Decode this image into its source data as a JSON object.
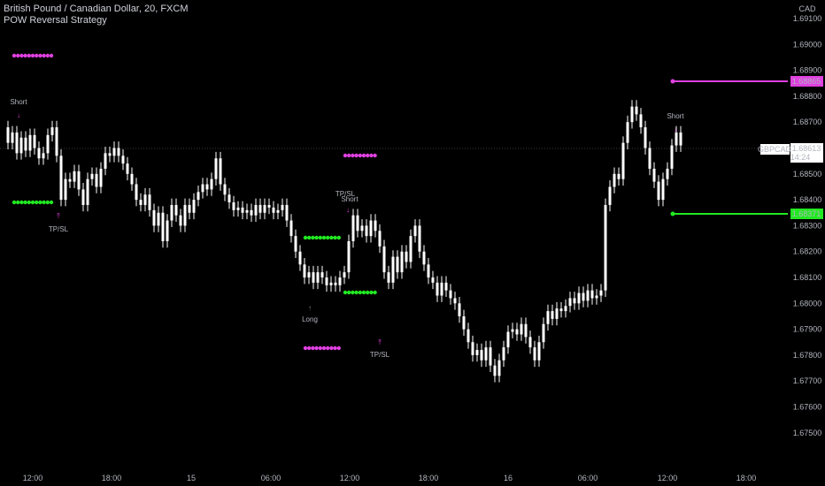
{
  "header": {
    "symbol_line": "British Pound / Canadian Dollar, 20, FXCM",
    "indicator": "POW Reversal Strategy"
  },
  "price_axis": {
    "currency": "CAD",
    "ticks": [
      "1.69100",
      "1.69000",
      "1.68900",
      "1.68800",
      "1.68700",
      "1.68600",
      "1.68500",
      "1.68400",
      "1.68300",
      "1.68200",
      "1.68100",
      "1.68000",
      "1.67900",
      "1.67800",
      "1.67700",
      "1.67600",
      "1.67500"
    ],
    "symbol_badge": "GBPCAD",
    "last_price": "1.68613",
    "countdown": "14:24",
    "upper_label": "1.68865",
    "lower_label": "1.68371"
  },
  "time_axis": {
    "ticks": [
      "12:00",
      "18:00",
      "15",
      "06:00",
      "12:00",
      "18:00",
      "16",
      "06:00",
      "12:00",
      "18:00"
    ]
  },
  "annotations": {
    "short": "Short",
    "long": "Long",
    "tpsl": "TP/SL"
  },
  "colors": {
    "background": "#000000",
    "candle": "#ffffff",
    "magenta": "#e040e0",
    "green": "#22e822",
    "grid_text": "#b2b5be"
  },
  "chart_data": {
    "type": "candlestick",
    "title": "British Pound / Canadian Dollar, 20, FXCM",
    "ylim": [
      1.6745,
      1.6915
    ],
    "close_path": [
      {
        "x": 0,
        "c": 1.6868
      },
      {
        "x": 5,
        "c": 1.6862
      },
      {
        "x": 10,
        "c": 1.6866
      },
      {
        "x": 15,
        "c": 1.6858
      },
      {
        "x": 20,
        "c": 1.6864
      },
      {
        "x": 25,
        "c": 1.6859
      },
      {
        "x": 30,
        "c": 1.6865
      },
      {
        "x": 35,
        "c": 1.686
      },
      {
        "x": 40,
        "c": 1.6856
      },
      {
        "x": 45,
        "c": 1.6858
      },
      {
        "x": 50,
        "c": 1.6865
      },
      {
        "x": 55,
        "c": 1.6868
      },
      {
        "x": 60,
        "c": 1.6857
      },
      {
        "x": 65,
        "c": 1.684
      },
      {
        "x": 70,
        "c": 1.6848
      },
      {
        "x": 75,
        "c": 1.6847
      },
      {
        "x": 80,
        "c": 1.6851
      },
      {
        "x": 85,
        "c": 1.6844
      },
      {
        "x": 90,
        "c": 1.6838
      },
      {
        "x": 95,
        "c": 1.6848
      },
      {
        "x": 100,
        "c": 1.685
      },
      {
        "x": 105,
        "c": 1.6845
      },
      {
        "x": 110,
        "c": 1.6852
      },
      {
        "x": 115,
        "c": 1.6858
      },
      {
        "x": 120,
        "c": 1.6857
      },
      {
        "x": 125,
        "c": 1.686
      },
      {
        "x": 130,
        "c": 1.6857
      },
      {
        "x": 135,
        "c": 1.6854
      },
      {
        "x": 140,
        "c": 1.685
      },
      {
        "x": 145,
        "c": 1.6846
      },
      {
        "x": 150,
        "c": 1.684
      },
      {
        "x": 155,
        "c": 1.6838
      },
      {
        "x": 160,
        "c": 1.6842
      },
      {
        "x": 165,
        "c": 1.6836
      },
      {
        "x": 170,
        "c": 1.683
      },
      {
        "x": 175,
        "c": 1.6835
      },
      {
        "x": 180,
        "c": 1.6824
      },
      {
        "x": 185,
        "c": 1.6832
      },
      {
        "x": 190,
        "c": 1.6838
      },
      {
        "x": 195,
        "c": 1.6834
      },
      {
        "x": 200,
        "c": 1.683
      },
      {
        "x": 205,
        "c": 1.6838
      },
      {
        "x": 210,
        "c": 1.6835
      },
      {
        "x": 215,
        "c": 1.684
      },
      {
        "x": 220,
        "c": 1.6843
      },
      {
        "x": 225,
        "c": 1.6846
      },
      {
        "x": 230,
        "c": 1.6844
      },
      {
        "x": 235,
        "c": 1.6848
      },
      {
        "x": 240,
        "c": 1.6856
      },
      {
        "x": 245,
        "c": 1.6846
      },
      {
        "x": 250,
        "c": 1.6842
      },
      {
        "x": 255,
        "c": 1.6839
      },
      {
        "x": 260,
        "c": 1.6836
      },
      {
        "x": 265,
        "c": 1.6837
      },
      {
        "x": 270,
        "c": 1.6835
      },
      {
        "x": 275,
        "c": 1.6836
      },
      {
        "x": 280,
        "c": 1.6834
      },
      {
        "x": 285,
        "c": 1.6838
      },
      {
        "x": 290,
        "c": 1.6835
      },
      {
        "x": 295,
        "c": 1.6838
      },
      {
        "x": 300,
        "c": 1.6837
      },
      {
        "x": 305,
        "c": 1.6835
      },
      {
        "x": 310,
        "c": 1.6836
      },
      {
        "x": 315,
        "c": 1.6838
      },
      {
        "x": 320,
        "c": 1.6832
      },
      {
        "x": 325,
        "c": 1.6826
      },
      {
        "x": 330,
        "c": 1.682
      },
      {
        "x": 335,
        "c": 1.6815
      },
      {
        "x": 340,
        "c": 1.681
      },
      {
        "x": 345,
        "c": 1.6812
      },
      {
        "x": 350,
        "c": 1.6808
      },
      {
        "x": 355,
        "c": 1.6812
      },
      {
        "x": 360,
        "c": 1.681
      },
      {
        "x": 365,
        "c": 1.6807
      },
      {
        "x": 370,
        "c": 1.6808
      },
      {
        "x": 375,
        "c": 1.6807
      },
      {
        "x": 380,
        "c": 1.681
      },
      {
        "x": 385,
        "c": 1.6812
      },
      {
        "x": 390,
        "c": 1.6824
      },
      {
        "x": 395,
        "c": 1.6834
      },
      {
        "x": 400,
        "c": 1.6828
      },
      {
        "x": 405,
        "c": 1.683
      },
      {
        "x": 410,
        "c": 1.6826
      },
      {
        "x": 415,
        "c": 1.6832
      },
      {
        "x": 420,
        "c": 1.6828
      },
      {
        "x": 425,
        "c": 1.6822
      },
      {
        "x": 430,
        "c": 1.6812
      },
      {
        "x": 435,
        "c": 1.6808
      },
      {
        "x": 440,
        "c": 1.6818
      },
      {
        "x": 445,
        "c": 1.6812
      },
      {
        "x": 450,
        "c": 1.682
      },
      {
        "x": 455,
        "c": 1.6816
      },
      {
        "x": 460,
        "c": 1.6826
      },
      {
        "x": 465,
        "c": 1.683
      },
      {
        "x": 470,
        "c": 1.682
      },
      {
        "x": 475,
        "c": 1.6815
      },
      {
        "x": 480,
        "c": 1.681
      },
      {
        "x": 485,
        "c": 1.6808
      },
      {
        "x": 490,
        "c": 1.6803
      },
      {
        "x": 495,
        "c": 1.6808
      },
      {
        "x": 500,
        "c": 1.6805
      },
      {
        "x": 505,
        "c": 1.6802
      },
      {
        "x": 510,
        "c": 1.68
      },
      {
        "x": 515,
        "c": 1.6795
      },
      {
        "x": 520,
        "c": 1.679
      },
      {
        "x": 525,
        "c": 1.6785
      },
      {
        "x": 530,
        "c": 1.678
      },
      {
        "x": 535,
        "c": 1.6782
      },
      {
        "x": 540,
        "c": 1.6778
      },
      {
        "x": 545,
        "c": 1.6783
      },
      {
        "x": 550,
        "c": 1.6776
      },
      {
        "x": 555,
        "c": 1.6772
      },
      {
        "x": 560,
        "c": 1.6778
      },
      {
        "x": 565,
        "c": 1.6783
      },
      {
        "x": 570,
        "c": 1.6789
      },
      {
        "x": 575,
        "c": 1.679
      },
      {
        "x": 580,
        "c": 1.6788
      },
      {
        "x": 585,
        "c": 1.6792
      },
      {
        "x": 590,
        "c": 1.6787
      },
      {
        "x": 595,
        "c": 1.6783
      },
      {
        "x": 600,
        "c": 1.6778
      },
      {
        "x": 605,
        "c": 1.6785
      },
      {
        "x": 610,
        "c": 1.6792
      },
      {
        "x": 615,
        "c": 1.6797
      },
      {
        "x": 620,
        "c": 1.6794
      },
      {
        "x": 625,
        "c": 1.6798
      },
      {
        "x": 630,
        "c": 1.6797
      },
      {
        "x": 635,
        "c": 1.6799
      },
      {
        "x": 640,
        "c": 1.6802
      },
      {
        "x": 645,
        "c": 1.68
      },
      {
        "x": 650,
        "c": 1.6804
      },
      {
        "x": 655,
        "c": 1.6801
      },
      {
        "x": 660,
        "c": 1.6805
      },
      {
        "x": 665,
        "c": 1.6802
      },
      {
        "x": 670,
        "c": 1.6803
      },
      {
        "x": 675,
        "c": 1.6805
      },
      {
        "x": 680,
        "c": 1.6838
      },
      {
        "x": 685,
        "c": 1.6845
      },
      {
        "x": 690,
        "c": 1.685
      },
      {
        "x": 695,
        "c": 1.6848
      },
      {
        "x": 700,
        "c": 1.6862
      },
      {
        "x": 705,
        "c": 1.687
      },
      {
        "x": 710,
        "c": 1.6876
      },
      {
        "x": 715,
        "c": 1.6873
      },
      {
        "x": 720,
        "c": 1.6868
      },
      {
        "x": 725,
        "c": 1.686
      },
      {
        "x": 730,
        "c": 1.6852
      },
      {
        "x": 735,
        "c": 1.6847
      },
      {
        "x": 740,
        "c": 1.684
      },
      {
        "x": 745,
        "c": 1.6848
      },
      {
        "x": 750,
        "c": 1.6852
      },
      {
        "x": 755,
        "c": 1.6861
      },
      {
        "x": 760,
        "c": 1.6866
      },
      {
        "x": 765,
        "c": 1.6861
      }
    ]
  }
}
